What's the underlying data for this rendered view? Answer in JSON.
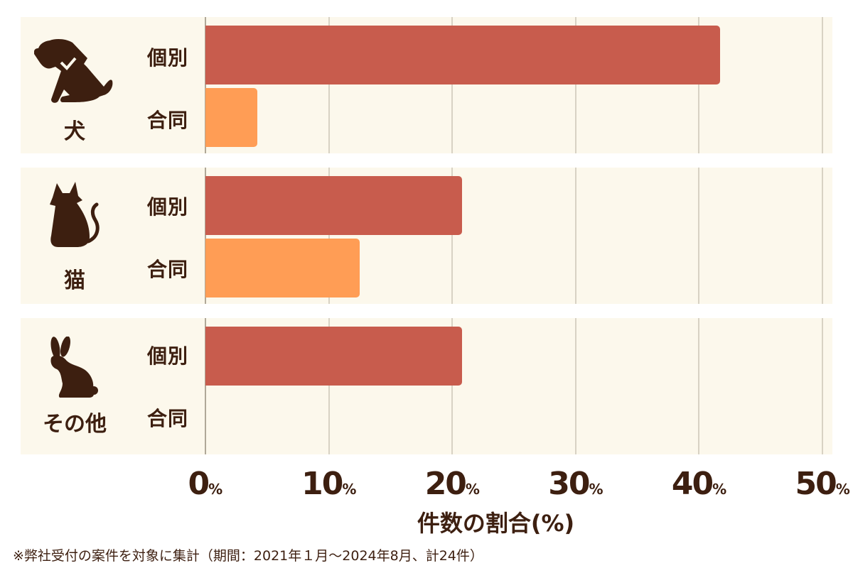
{
  "chart_data": {
    "type": "bar",
    "orientation": "horizontal",
    "title": "",
    "xlabel": "件数の割合(%)",
    "ylabel": "",
    "xlim": [
      0,
      50
    ],
    "x_ticks": [
      "0%",
      "10%",
      "20%",
      "30%",
      "40%",
      "50%"
    ],
    "grid": true,
    "categories": [
      "犬",
      "猫",
      "その他"
    ],
    "series": [
      {
        "name": "個別",
        "color": "#c85c4d",
        "values": [
          41.7,
          20.8,
          20.8
        ]
      },
      {
        "name": "合同",
        "color": "#ff9d55",
        "values": [
          4.2,
          12.5,
          0
        ]
      }
    ],
    "footnote": "※弊社受付の案件を対象に集計（期間：2021年１月～2024年8月、計24件）"
  },
  "groups": [
    {
      "label": "犬",
      "icon": "dog-icon",
      "individual_label": "個別",
      "joint_label": "合同"
    },
    {
      "label": "猫",
      "icon": "cat-icon",
      "individual_label": "個別",
      "joint_label": "合同"
    },
    {
      "label": "その他",
      "icon": "rabbit-icon",
      "individual_label": "個別",
      "joint_label": "合同"
    }
  ],
  "ticks": [
    {
      "num": "0",
      "unit": "%"
    },
    {
      "num": "10",
      "unit": "%"
    },
    {
      "num": "20",
      "unit": "%"
    },
    {
      "num": "30",
      "unit": "%"
    },
    {
      "num": "40",
      "unit": "%"
    },
    {
      "num": "50",
      "unit": "%"
    }
  ],
  "xlabel": "件数の割合(%)",
  "footnote": "※弊社受付の案件を対象に集計（期間：2021年１月～2024年8月、計24件）"
}
